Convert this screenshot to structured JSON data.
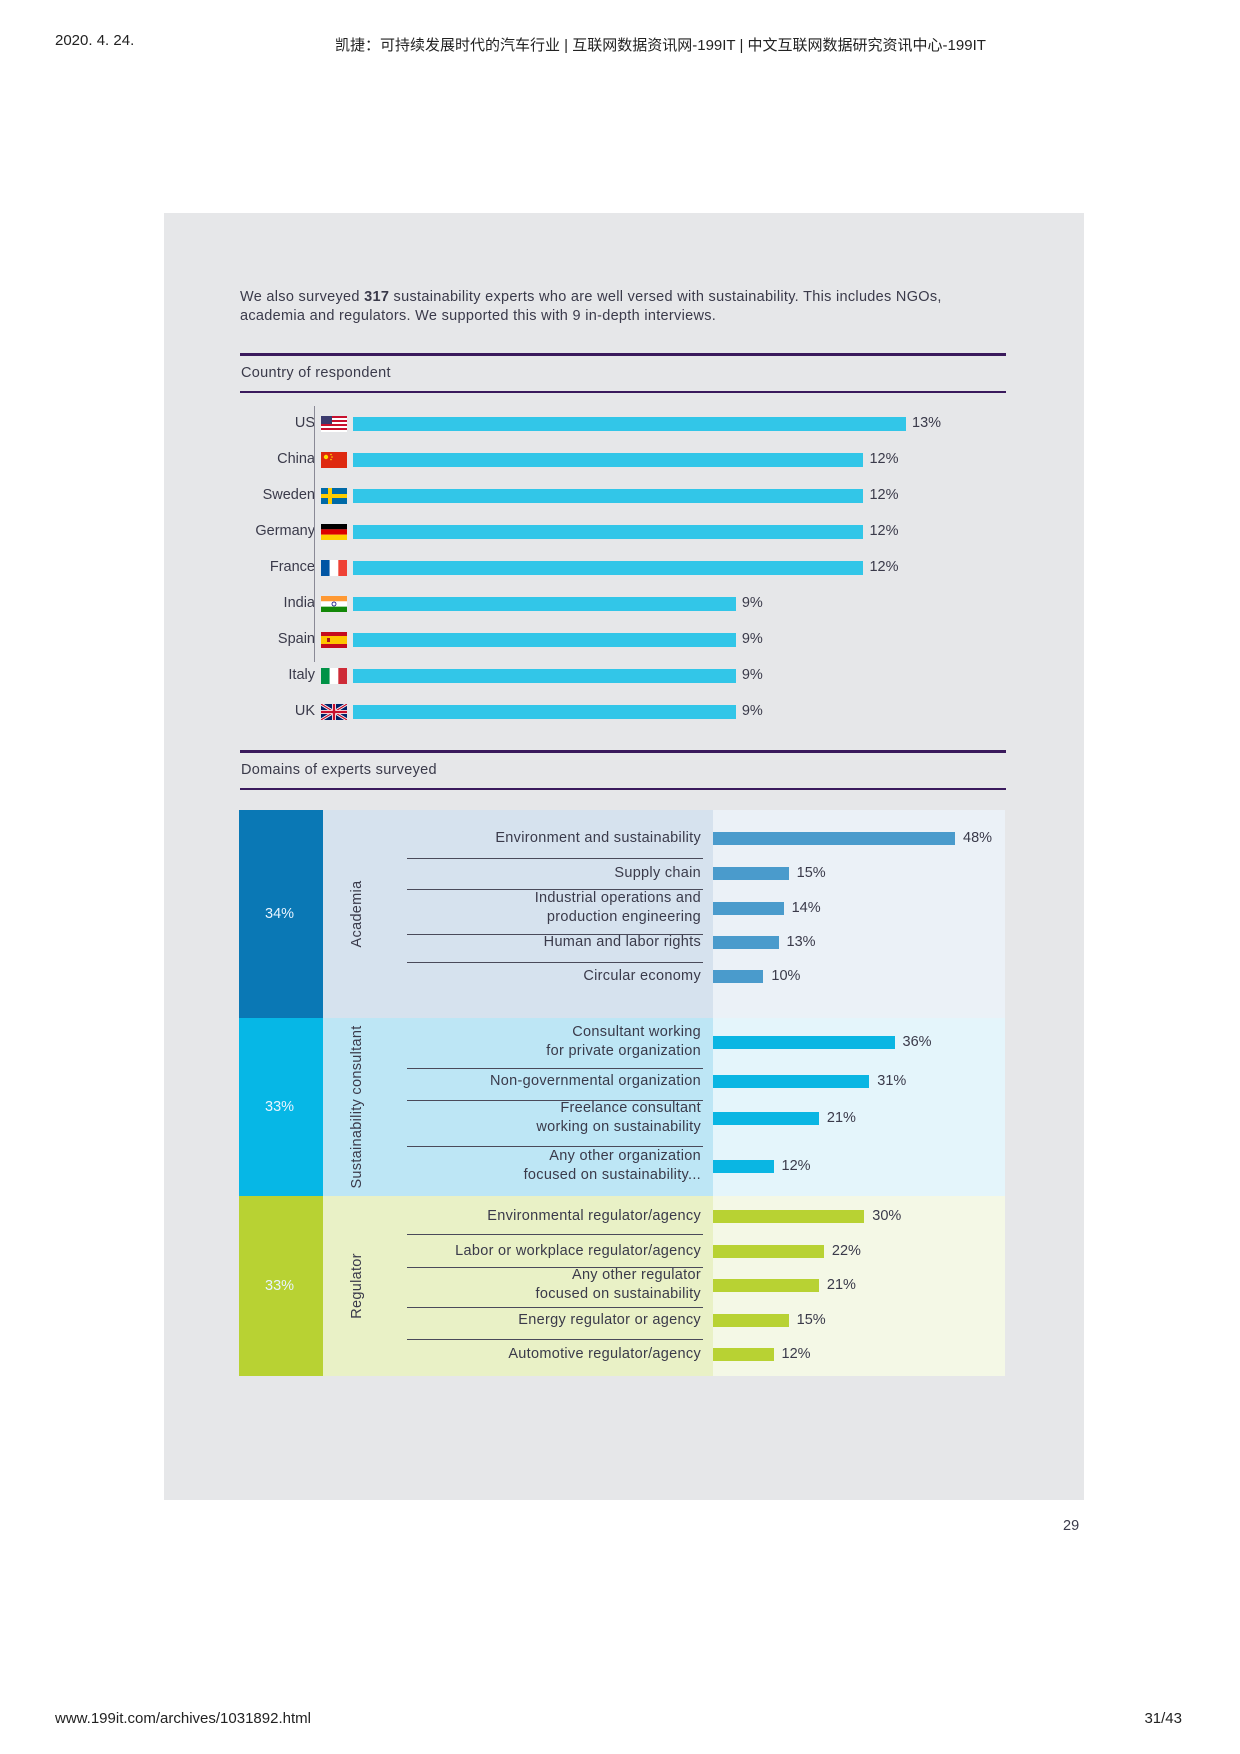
{
  "print_header": {
    "date": "2020. 4. 24.",
    "title": "凯捷：可持续发展时代的汽车行业 | 互联网数据资讯网-199IT | 中文互联网数据研究资讯中心-199IT"
  },
  "print_footer": {
    "url": "www.199it.com/archives/1031892.html",
    "pages": "31/43"
  },
  "intro": {
    "before": "We also surveyed ",
    "count": "317",
    "after": " sustainability experts who are well versed with sustainability. This includes NGOs, academia and regulators. We supported this with 9 in-depth interviews."
  },
  "page_number": "29",
  "colors": {
    "country_bar": "#32c6e8",
    "academia_dark": "#0a78b5",
    "academia_light": "#d6e2ee",
    "academia_chart_bg": "#ebf1f7",
    "academia_bar": "#4a9bcc",
    "consultant_dark": "#06b7e6",
    "consultant_light": "#bde6f5",
    "consultant_chart_bg": "#e4f5fb",
    "consultant_bar": "#0ab6e3",
    "regulator_dark": "#b8d233",
    "regulator_light": "#e9f1c6",
    "regulator_chart_bg": "#f4f8e6",
    "regulator_bar": "#b8d233"
  },
  "chart_data": [
    {
      "type": "bar",
      "orientation": "horizontal",
      "title": "Country of respondent",
      "categories": [
        "US",
        "China",
        "Sweden",
        "Germany",
        "France",
        "India",
        "Spain",
        "Italy",
        "UK"
      ],
      "values": [
        13,
        12,
        12,
        12,
        12,
        9,
        9,
        9,
        9
      ],
      "value_labels": [
        "13%",
        "12%",
        "12%",
        "12%",
        "12%",
        "9%",
        "9%",
        "9%",
        "9%"
      ],
      "flags": [
        "us-flag-icon",
        "china-flag-icon",
        "sweden-flag-icon",
        "germany-flag-icon",
        "france-flag-icon",
        "india-flag-icon",
        "spain-flag-icon",
        "italy-flag-icon",
        "uk-flag-icon"
      ],
      "xlim": [
        0,
        13
      ]
    },
    {
      "type": "bar",
      "orientation": "horizontal",
      "title": "Domains of experts surveyed",
      "xlim": [
        0,
        48
      ],
      "groups": [
        {
          "name": "Academia",
          "share": "34%",
          "categories": [
            "Environment and sustainability",
            "Supply chain",
            "Industrial operations and\nproduction engineering",
            "Human and labor rights",
            "Circular economy"
          ],
          "values": [
            48,
            15,
            14,
            13,
            10
          ],
          "value_labels": [
            "48%",
            "15%",
            "14%",
            "13%",
            "10%"
          ]
        },
        {
          "name": "Sustainability consultant",
          "share": "33%",
          "categories": [
            "Consultant working\nfor private organization",
            "Non-governmental organization",
            "Freelance consultant\nworking on sustainability",
            "Any other organization\nfocused on sustainability..."
          ],
          "values": [
            36,
            31,
            21,
            12
          ],
          "value_labels": [
            "36%",
            "31%",
            "21%",
            "12%"
          ]
        },
        {
          "name": "Regulator",
          "share": "33%",
          "categories": [
            "Environmental regulator/agency",
            "Labor or workplace regulator/agency",
            "Any other regulator\nfocused on sustainability",
            "Energy regulator or agency",
            "Automotive regulator/agency"
          ],
          "values": [
            30,
            22,
            21,
            15,
            12
          ],
          "value_labels": [
            "30%",
            "22%",
            "21%",
            "15%",
            "12%"
          ]
        }
      ]
    }
  ]
}
